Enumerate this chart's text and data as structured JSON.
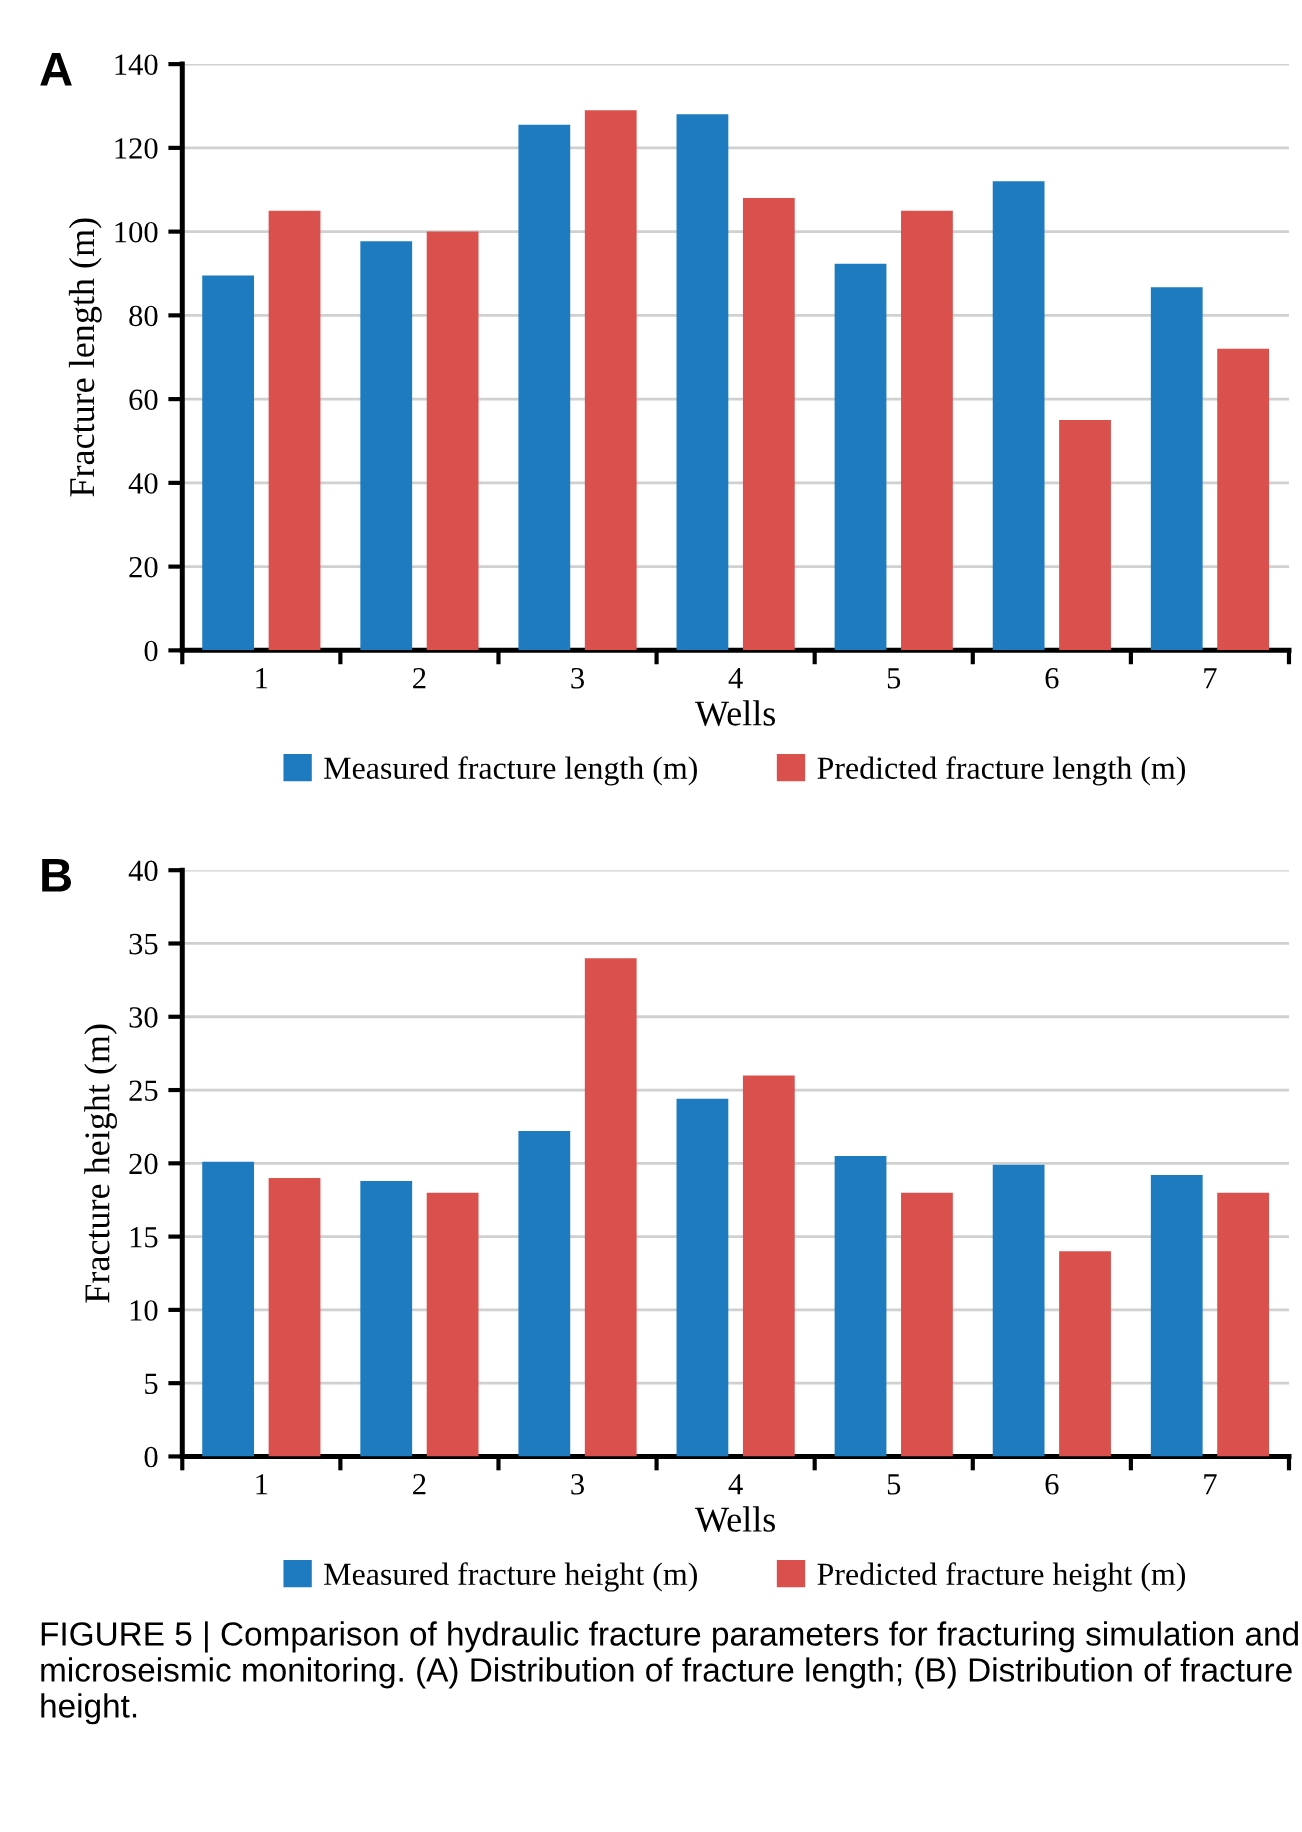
{
  "chart_data": [
    {
      "type": "bar",
      "xlabel": "Wells",
      "ylabel": "Fracture length (m)",
      "annotations": [
        "A"
      ],
      "categories": [
        "1",
        "2",
        "3",
        "4",
        "5",
        "6",
        "7"
      ],
      "series": [
        {
          "name": "Measured fracture length (m)",
          "color": "#1f7bbf",
          "values": [
            89.5,
            97.7,
            125.5,
            128,
            92.3,
            112,
            86.7
          ]
        },
        {
          "name": "Predicted fracture length (m)",
          "color": "#d9504c",
          "values": [
            105,
            100,
            129,
            108,
            105,
            55,
            72
          ]
        }
      ],
      "ylim": [
        0,
        140
      ],
      "yticks": [
        0,
        20,
        40,
        60,
        80,
        100,
        120,
        140
      ],
      "grid": "y",
      "legend": "bottom"
    },
    {
      "type": "bar",
      "xlabel": "Wells",
      "ylabel": "Fracture height (m)",
      "annotations": [
        "B",
        "FIGURE 5 | Comparison of hydraulic fracture parameters for fracturing simulation and microseismic monitoring. (A) Distribution of fracture length; (B) Distribution of fracture height."
      ],
      "categories": [
        "1",
        "2",
        "3",
        "4",
        "5",
        "6",
        "7"
      ],
      "series": [
        {
          "name": "Measured fracture height (m)",
          "color": "#1f7bbf",
          "values": [
            20.1,
            18.8,
            22.2,
            24.4,
            20.5,
            19.9,
            19.2
          ]
        },
        {
          "name": "Predicted fracture height (m)",
          "color": "#d9504c",
          "values": [
            19,
            18,
            34,
            26,
            18,
            14,
            18
          ]
        }
      ],
      "ylim": [
        0,
        40
      ],
      "yticks": [
        0,
        5,
        10,
        15,
        20,
        25,
        30,
        35,
        40
      ],
      "grid": "y",
      "legend": "bottom"
    }
  ]
}
